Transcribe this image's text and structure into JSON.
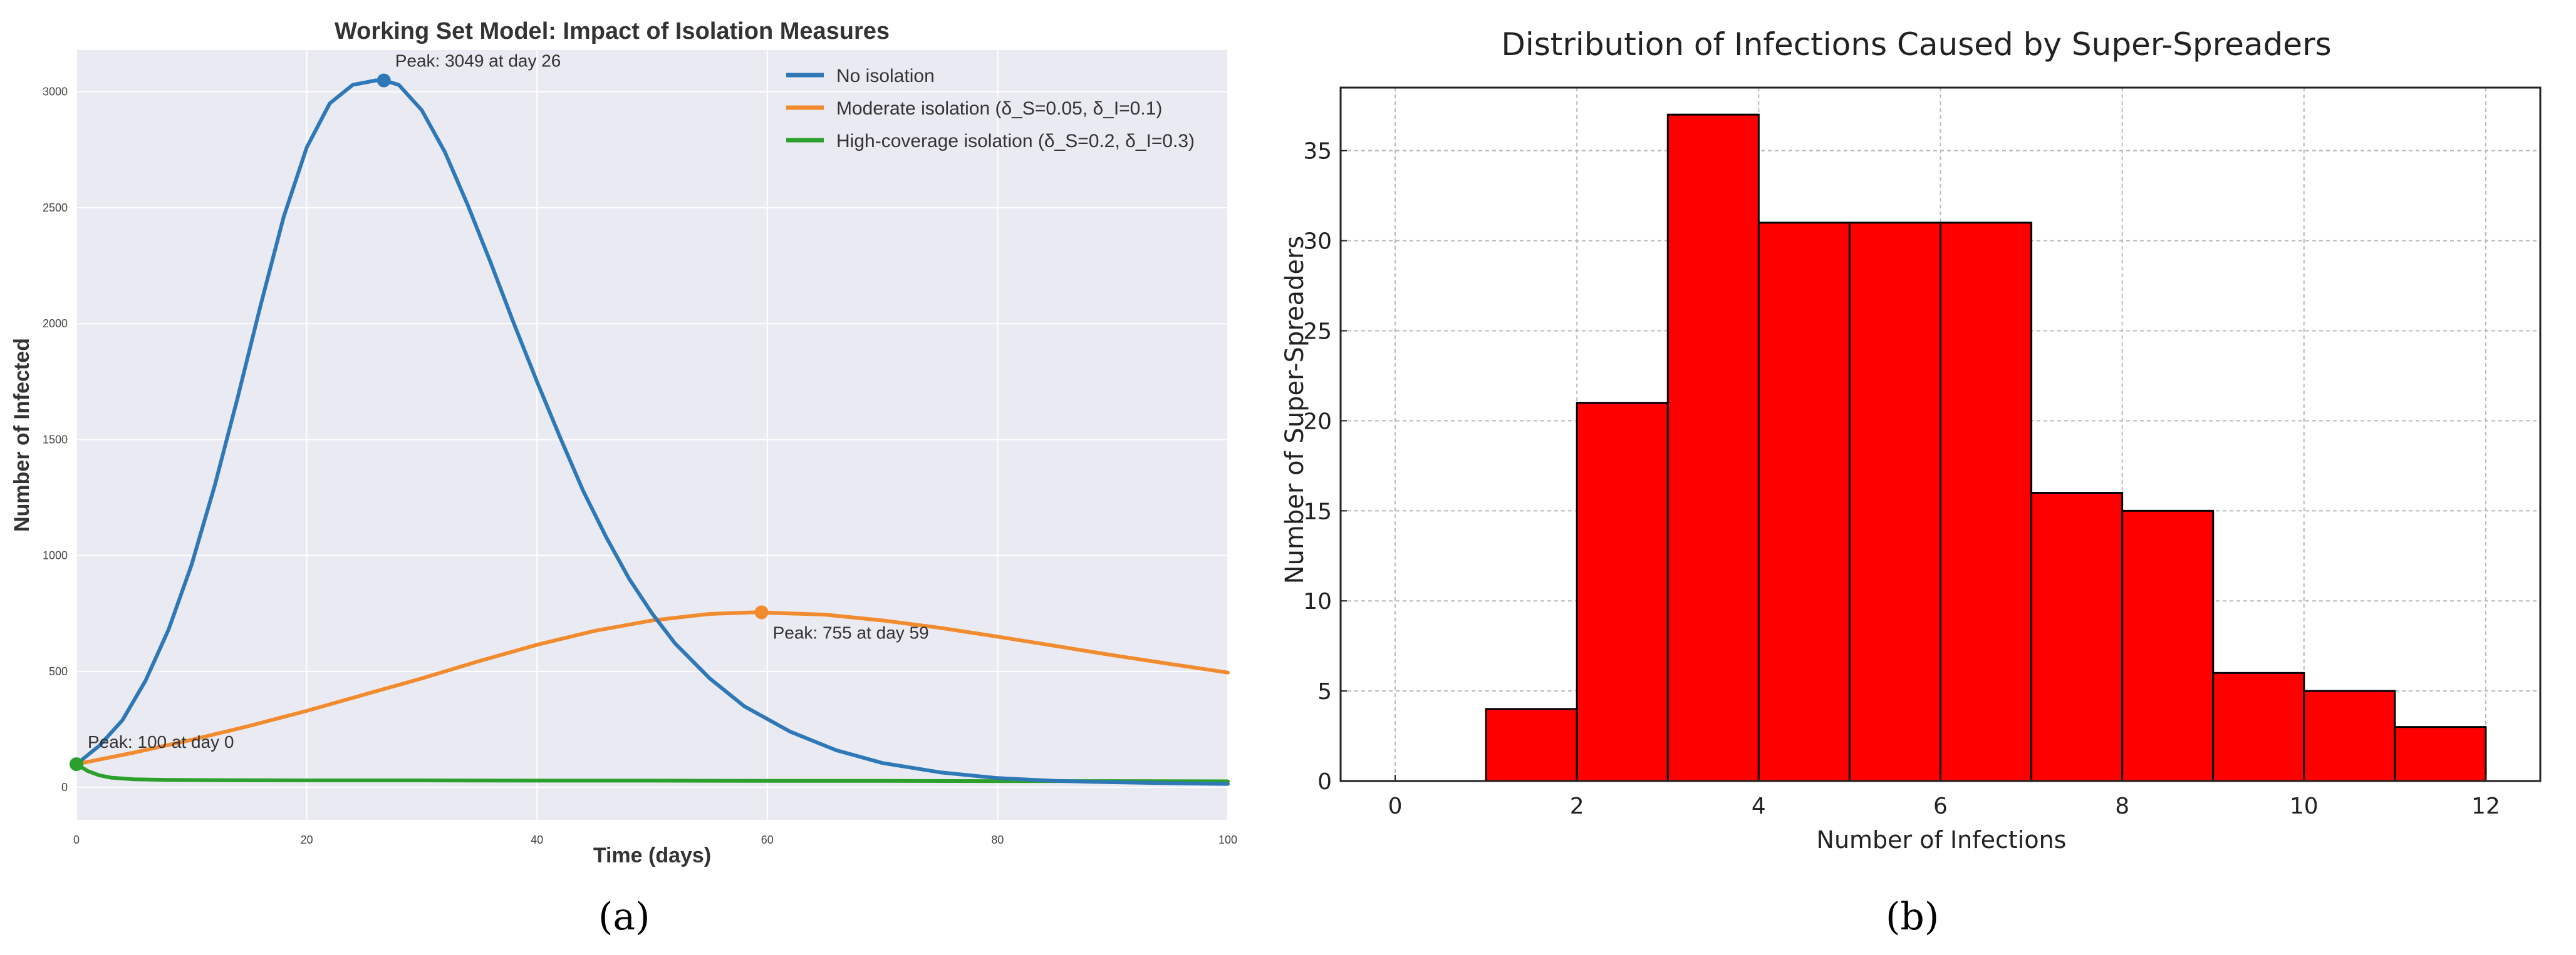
{
  "figure": {
    "panel_a_label": "(a)",
    "panel_b_label": "(b)"
  },
  "chart_data": [
    {
      "type": "line",
      "title": "Working Set Model: Impact of Isolation Measures",
      "xlabel": "Time (days)",
      "ylabel": "Number of Infected",
      "xlim": [
        0,
        100
      ],
      "ylim": [
        -140,
        3180
      ],
      "xticks": [
        0,
        20,
        40,
        60,
        80,
        100
      ],
      "yticks": [
        0,
        500,
        1000,
        1500,
        2000,
        2500,
        3000
      ],
      "grid": true,
      "legend_position": "top-right",
      "series": [
        {
          "name": "No isolation",
          "color": "#2e78b7",
          "x": [
            0,
            2,
            4,
            6,
            8,
            10,
            12,
            14,
            16,
            18,
            20,
            22,
            24,
            26,
            27,
            28,
            30,
            32,
            34,
            36,
            38,
            40,
            42,
            44,
            46,
            48,
            50,
            52,
            55,
            58,
            62,
            66,
            70,
            75,
            80,
            85,
            90,
            95,
            100
          ],
          "y": [
            100,
            180,
            290,
            460,
            680,
            960,
            1300,
            1680,
            2080,
            2460,
            2760,
            2950,
            3030,
            3049,
            3045,
            3030,
            2920,
            2740,
            2510,
            2260,
            2000,
            1750,
            1510,
            1280,
            1080,
            900,
            750,
            620,
            470,
            350,
            240,
            160,
            105,
            65,
            40,
            28,
            22,
            18,
            15
          ]
        },
        {
          "name": "Moderate isolation (δ_S=0.05, δ_I=0.1)",
          "color": "#f28a2e",
          "x": [
            0,
            5,
            10,
            15,
            20,
            25,
            30,
            35,
            40,
            45,
            50,
            55,
            59,
            65,
            70,
            75,
            80,
            85,
            90,
            95,
            100
          ],
          "y": [
            100,
            150,
            205,
            265,
            330,
            400,
            470,
            545,
            615,
            675,
            720,
            748,
            755,
            745,
            720,
            688,
            650,
            610,
            570,
            532,
            495
          ]
        },
        {
          "name": "High-coverage isolation (δ_S=0.2, δ_I=0.3)",
          "color": "#2ca02c",
          "x": [
            0,
            1,
            2,
            3,
            5,
            8,
            12,
            20,
            30,
            40,
            50,
            60,
            70,
            80,
            90,
            100
          ],
          "y": [
            100,
            70,
            52,
            42,
            35,
            32,
            31,
            30,
            30,
            29,
            29,
            28,
            28,
            27,
            27,
            26
          ]
        }
      ],
      "annotations": [
        {
          "text": "Peak: 3049 at day 26",
          "x": 26.7,
          "y": 3049,
          "series": 0
        },
        {
          "text": "Peak: 755 at day 59",
          "x": 59.5,
          "y": 755,
          "series": 1
        },
        {
          "text": "Peak: 100 at day 0",
          "x": 0,
          "y": 100,
          "series": 2
        }
      ]
    },
    {
      "type": "bar",
      "title": "Distribution of Infections Caused by Super-Spreaders",
      "xlabel": "Number of Infections",
      "ylabel": "Number of Super-Spreaders",
      "bin_edges": [
        0,
        1,
        2,
        3,
        4,
        5,
        6,
        7,
        8,
        9,
        10,
        11,
        12
      ],
      "values": [
        0,
        4,
        21,
        37,
        31,
        31,
        31,
        16,
        15,
        6,
        5,
        3
      ],
      "bar_color": "#ff0000",
      "xlim": [
        -0.6,
        12.6
      ],
      "ylim": [
        0,
        38.5
      ],
      "xticks": [
        0,
        2,
        4,
        6,
        8,
        10,
        12
      ],
      "yticks": [
        0,
        5,
        10,
        15,
        20,
        25,
        30,
        35
      ],
      "grid": true
    }
  ]
}
